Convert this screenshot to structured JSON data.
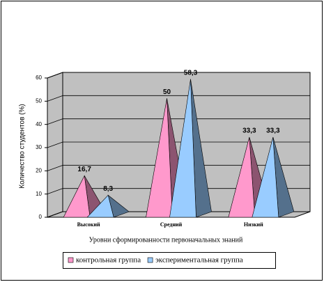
{
  "chart_data": {
    "type": "pyramid",
    "y_label": "Количество студентов (%)",
    "x_label": "Уровни сформированности первоначальных знаний",
    "categories": [
      "Высокий",
      "Средний",
      "Низкий"
    ],
    "series": [
      {
        "name": "контрольная группа",
        "color": "#ff99cc",
        "values": [
          16.7,
          50,
          33.3
        ],
        "value_labels": [
          "16,7",
          "50",
          "33,3"
        ]
      },
      {
        "name": "экспериментальная группа",
        "color": "#99ccff",
        "values": [
          8.3,
          58.3,
          33.3
        ],
        "value_labels": [
          "8,3",
          "58,3",
          "33,3"
        ]
      }
    ],
    "ylim": [
      0,
      60
    ],
    "yticks": [
      0,
      10,
      20,
      30,
      40,
      50,
      60
    ],
    "grid": true,
    "legend": "bottom"
  }
}
